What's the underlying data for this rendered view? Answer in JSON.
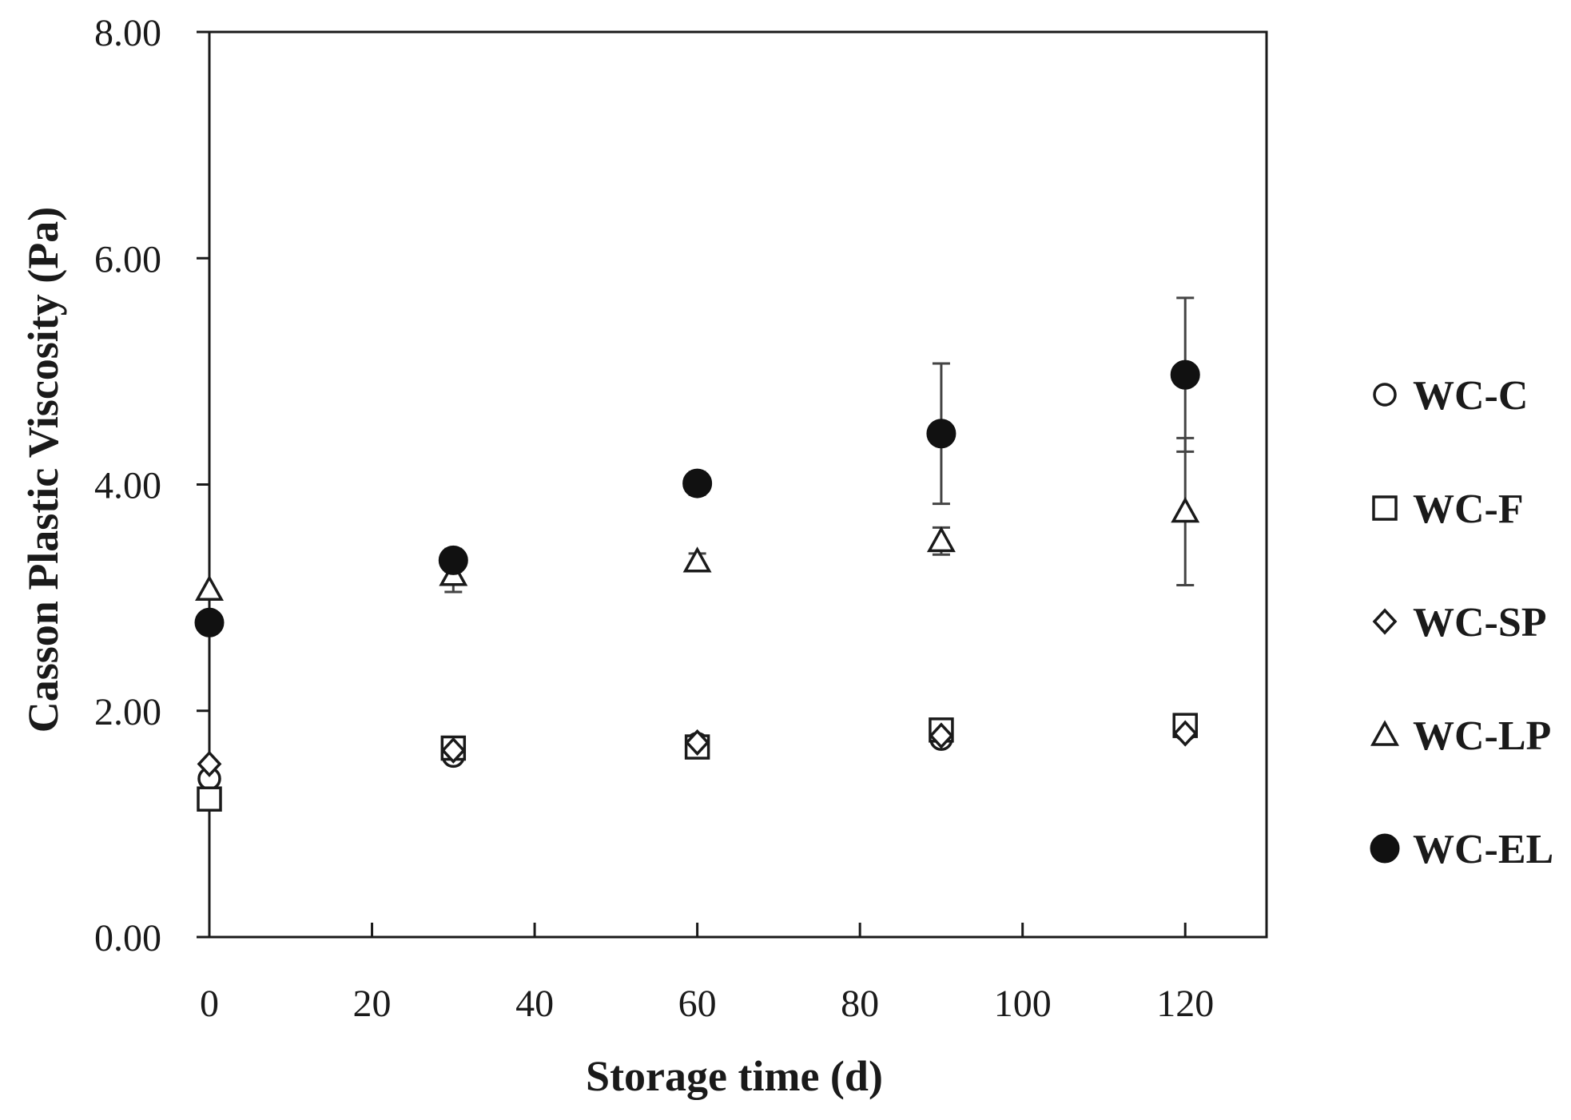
{
  "chart_data": {
    "type": "scatter",
    "xlabel": "Storage time (d)",
    "ylabel": "Casson Plastic Viscosity (Pa)",
    "xlim": [
      0,
      130
    ],
    "ylim": [
      0,
      8
    ],
    "xticks": [
      0,
      20,
      40,
      60,
      80,
      100,
      120
    ],
    "yticks": [
      0,
      2,
      4,
      6,
      8
    ],
    "x_tick_labels": [
      "0",
      "20",
      "40",
      "60",
      "80",
      "100",
      "120"
    ],
    "y_tick_labels": [
      "0.00",
      "2.00",
      "4.00",
      "6.00",
      "8.00"
    ],
    "grid": false,
    "legend_position": "right",
    "x": [
      0,
      30,
      60,
      90,
      120
    ],
    "series": [
      {
        "name": "WC-C",
        "marker": "circle-open",
        "values": [
          1.4,
          1.6,
          1.71,
          1.75,
          1.83
        ],
        "errors": [
          0.05,
          0.05,
          0.05,
          0.05,
          0.05
        ]
      },
      {
        "name": "WC-F",
        "marker": "square-open",
        "values": [
          1.22,
          1.67,
          1.68,
          1.83,
          1.87
        ],
        "errors": [
          0.05,
          0.05,
          0.05,
          0.05,
          0.05
        ]
      },
      {
        "name": "WC-SP",
        "marker": "diamond-open",
        "values": [
          1.53,
          1.65,
          1.72,
          1.78,
          1.8
        ],
        "errors": [
          0.05,
          0.05,
          0.05,
          0.05,
          0.05
        ]
      },
      {
        "name": "WC-LP",
        "marker": "triangle-open",
        "values": [
          3.07,
          3.2,
          3.32,
          3.5,
          3.76
        ],
        "errors": [
          0.05,
          0.15,
          0.07,
          0.12,
          0.65
        ]
      },
      {
        "name": "WC-EL",
        "marker": "circle-filled",
        "values": [
          2.78,
          3.33,
          4.01,
          4.45,
          4.97
        ],
        "errors": [
          0.05,
          0.1,
          0.1,
          0.62,
          0.68
        ]
      }
    ]
  }
}
